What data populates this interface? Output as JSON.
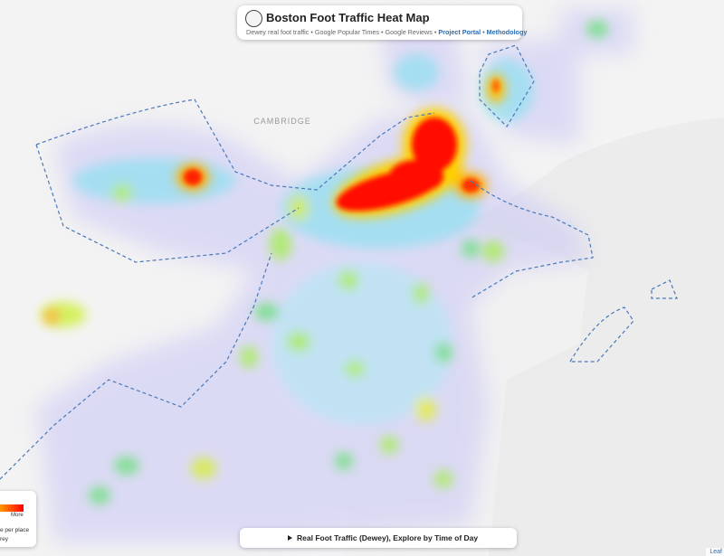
{
  "header": {
    "title": "Boston Foot Traffic Heat Map",
    "subtitle": "Dewey real foot traffic • Google Popular Times • Google Reviews •",
    "link_1": "Project Portal",
    "separator": "•",
    "link_2": "Methodology"
  },
  "map": {
    "labels": [
      "CAMBRIDGE"
    ]
  },
  "legend": {
    "high_label": "More",
    "lines": [
      "e per place",
      "rey"
    ]
  },
  "footer": {
    "toggle": "Real Foot Traffic (Dewey), Explore by Time of Day"
  },
  "attribution": "Leaf"
}
